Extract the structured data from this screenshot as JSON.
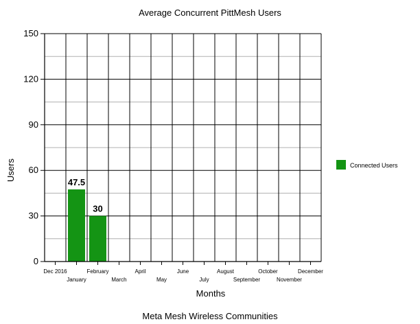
{
  "chart_data": {
    "type": "bar",
    "title": "Average Concurrent PittMesh Users",
    "subtitle": "Meta Mesh Wireless Communities",
    "xlabel": "Months",
    "ylabel": "Users",
    "ylim": [
      0,
      150
    ],
    "yticks": [
      0,
      30,
      60,
      90,
      120,
      150
    ],
    "minor_gridlines": true,
    "grid": true,
    "legend_position": "right",
    "categories": [
      "Dec 2016",
      "January",
      "February",
      "March",
      "April",
      "May",
      "June",
      "July",
      "August",
      "September",
      "October",
      "November",
      "December"
    ],
    "series": [
      {
        "name": "Connected Users",
        "color": "#149414",
        "values": [
          null,
          47.5,
          30,
          null,
          null,
          null,
          null,
          null,
          null,
          null,
          null,
          null,
          null
        ],
        "data_labels": [
          "",
          "47.5",
          "30",
          "",
          "",
          "",
          "",
          "",
          "",
          "",
          "",
          "",
          ""
        ]
      }
    ]
  }
}
